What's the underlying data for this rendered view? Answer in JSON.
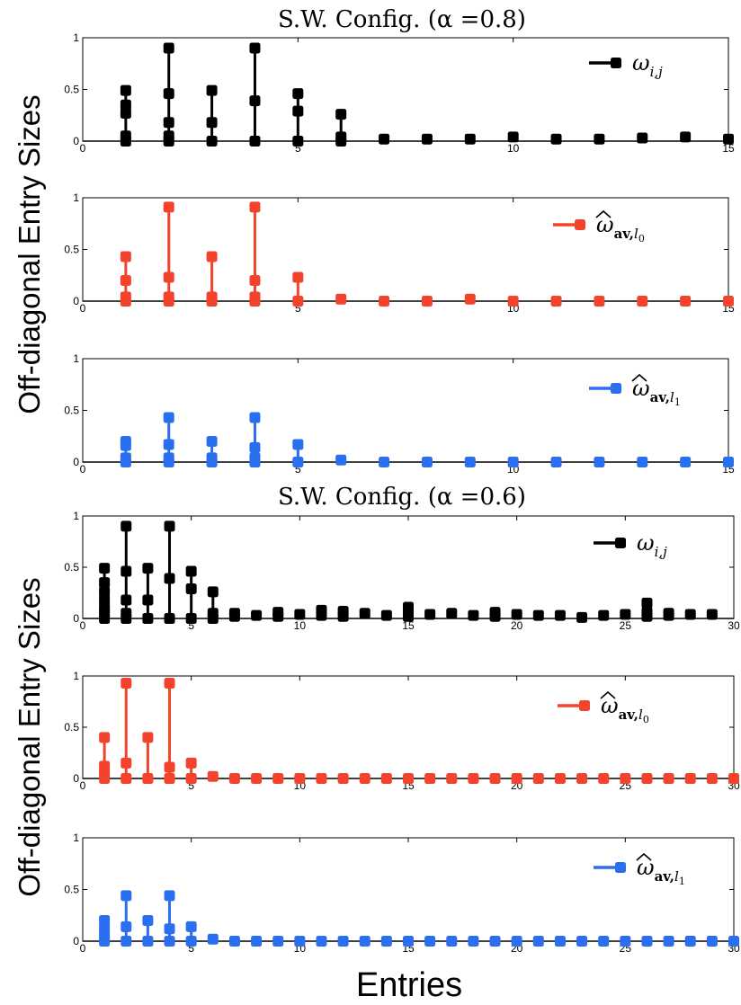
{
  "colors": {
    "black": "#000000",
    "red": "#f4432c",
    "blue": "#2a6ff0"
  },
  "figure": {
    "ylabel": "Off-diagonal Entry Sizes",
    "xlabel": "Entries"
  },
  "chart_data": [
    {
      "type": "stem",
      "title": "S.W. Config. (α =0.8)",
      "xlim": [
        0,
        15
      ],
      "ylim": [
        0,
        1
      ],
      "xticks": [
        "0",
        "5",
        "10",
        "15"
      ],
      "yticks": [
        "0",
        "0.5",
        "1"
      ],
      "panels": [
        {
          "legend": "ω_{i,j}",
          "color": "#000000",
          "stems": [
            {
              "x": 1,
              "values": [
                0.0,
                0.05,
                0.27,
                0.35,
                0.49
              ]
            },
            {
              "x": 2,
              "values": [
                0.0,
                0.05,
                0.18,
                0.46,
                0.9
              ]
            },
            {
              "x": 3,
              "values": [
                0.0,
                0.18,
                0.49
              ]
            },
            {
              "x": 4,
              "values": [
                0.0,
                0.39,
                0.9
              ]
            },
            {
              "x": 5,
              "values": [
                0.0,
                0.29,
                0.46
              ]
            },
            {
              "x": 6,
              "values": [
                0.0,
                0.04,
                0.26
              ]
            },
            {
              "x": 7,
              "values": [
                0.02
              ]
            },
            {
              "x": 8,
              "values": [
                0.02
              ]
            },
            {
              "x": 9,
              "values": [
                0.02
              ]
            },
            {
              "x": 10,
              "values": [
                0.04
              ]
            },
            {
              "x": 11,
              "values": [
                0.02
              ]
            },
            {
              "x": 12,
              "values": [
                0.02
              ]
            },
            {
              "x": 13,
              "values": [
                0.03
              ]
            },
            {
              "x": 14,
              "values": [
                0.04
              ]
            },
            {
              "x": 15,
              "values": [
                0.02
              ]
            }
          ]
        },
        {
          "legend": "ω̂_{av,l0}",
          "color": "#f4432c",
          "stems": [
            {
              "x": 1,
              "values": [
                0.0,
                0.04,
                0.2,
                0.43
              ]
            },
            {
              "x": 2,
              "values": [
                0.0,
                0.04,
                0.23,
                0.91
              ]
            },
            {
              "x": 3,
              "values": [
                0.0,
                0.04,
                0.43
              ]
            },
            {
              "x": 4,
              "values": [
                0.0,
                0.04,
                0.2,
                0.91
              ]
            },
            {
              "x": 5,
              "values": [
                0.0,
                0.23
              ]
            },
            {
              "x": 6,
              "values": [
                0.02
              ]
            },
            {
              "x": 7,
              "values": [
                0.0
              ]
            },
            {
              "x": 8,
              "values": [
                0.0
              ]
            },
            {
              "x": 9,
              "values": [
                0.02
              ]
            },
            {
              "x": 10,
              "values": [
                0.0
              ]
            },
            {
              "x": 11,
              "values": [
                0.0
              ]
            },
            {
              "x": 12,
              "values": [
                0.0
              ]
            },
            {
              "x": 13,
              "values": [
                0.0
              ]
            },
            {
              "x": 14,
              "values": [
                0.0
              ]
            },
            {
              "x": 15,
              "values": [
                0.0
              ]
            }
          ]
        },
        {
          "legend": "ω̂_{av,l1}",
          "color": "#2a6ff0",
          "stems": [
            {
              "x": 1,
              "values": [
                0.0,
                0.04,
                0.16,
                0.2
              ]
            },
            {
              "x": 2,
              "values": [
                0.0,
                0.04,
                0.17,
                0.43
              ]
            },
            {
              "x": 3,
              "values": [
                0.0,
                0.04,
                0.2
              ]
            },
            {
              "x": 4,
              "values": [
                0.0,
                0.04,
                0.14,
                0.43
              ]
            },
            {
              "x": 5,
              "values": [
                0.0,
                0.17
              ]
            },
            {
              "x": 6,
              "values": [
                0.02
              ]
            },
            {
              "x": 7,
              "values": [
                0.0
              ]
            },
            {
              "x": 8,
              "values": [
                0.0
              ]
            },
            {
              "x": 9,
              "values": [
                0.0
              ]
            },
            {
              "x": 10,
              "values": [
                0.0
              ]
            },
            {
              "x": 11,
              "values": [
                0.0
              ]
            },
            {
              "x": 12,
              "values": [
                0.0
              ]
            },
            {
              "x": 13,
              "values": [
                0.0
              ]
            },
            {
              "x": 14,
              "values": [
                0.0
              ]
            },
            {
              "x": 15,
              "values": [
                0.0
              ]
            }
          ]
        }
      ]
    },
    {
      "type": "stem",
      "title": "S.W. Config. (α =0.6)",
      "xlim": [
        0,
        30
      ],
      "ylim": [
        0,
        1
      ],
      "xticks": [
        "0",
        "5",
        "10",
        "15",
        "20",
        "25",
        "30"
      ],
      "yticks": [
        "0",
        "0.5",
        "1"
      ],
      "panels": [
        {
          "legend": "ω_{i,j}",
          "color": "#000000",
          "stems": [
            {
              "x": 1,
              "values": [
                0.0,
                0.05,
                0.1,
                0.18,
                0.26,
                0.35,
                0.49
              ]
            },
            {
              "x": 2,
              "values": [
                0.0,
                0.05,
                0.18,
                0.46,
                0.9
              ]
            },
            {
              "x": 3,
              "values": [
                0.0,
                0.18,
                0.49
              ]
            },
            {
              "x": 4,
              "values": [
                0.0,
                0.39,
                0.9
              ]
            },
            {
              "x": 5,
              "values": [
                0.0,
                0.29,
                0.46
              ]
            },
            {
              "x": 6,
              "values": [
                0.0,
                0.05,
                0.26
              ]
            },
            {
              "x": 7,
              "values": [
                0.02,
                0.05
              ]
            },
            {
              "x": 8,
              "values": [
                0.03
              ]
            },
            {
              "x": 9,
              "values": [
                0.02,
                0.06
              ]
            },
            {
              "x": 10,
              "values": [
                0.04
              ]
            },
            {
              "x": 11,
              "values": [
                0.03,
                0.08
              ]
            },
            {
              "x": 12,
              "values": [
                0.02,
                0.07
              ]
            },
            {
              "x": 13,
              "values": [
                0.05
              ]
            },
            {
              "x": 14,
              "values": [
                0.03
              ]
            },
            {
              "x": 15,
              "values": [
                0.02,
                0.06,
                0.11
              ]
            },
            {
              "x": 16,
              "values": [
                0.04
              ]
            },
            {
              "x": 17,
              "values": [
                0.05
              ]
            },
            {
              "x": 18,
              "values": [
                0.03
              ]
            },
            {
              "x": 19,
              "values": [
                0.02,
                0.06
              ]
            },
            {
              "x": 20,
              "values": [
                0.04
              ]
            },
            {
              "x": 21,
              "values": [
                0.03
              ]
            },
            {
              "x": 22,
              "values": [
                0.03
              ]
            },
            {
              "x": 23,
              "values": [
                0.01
              ]
            },
            {
              "x": 24,
              "values": [
                0.03
              ]
            },
            {
              "x": 25,
              "values": [
                0.04
              ]
            },
            {
              "x": 26,
              "values": [
                0.02,
                0.06,
                0.15
              ]
            },
            {
              "x": 27,
              "values": [
                0.03,
                0.05
              ]
            },
            {
              "x": 28,
              "values": [
                0.04
              ]
            },
            {
              "x": 29,
              "values": [
                0.04
              ]
            }
          ]
        },
        {
          "legend": "ω̂_{av,l0}",
          "color": "#f4432c",
          "stems": [
            {
              "x": 1,
              "values": [
                0.0,
                0.05,
                0.12,
                0.4
              ]
            },
            {
              "x": 2,
              "values": [
                0.0,
                0.15,
                0.93
              ]
            },
            {
              "x": 3,
              "values": [
                0.0,
                0.4
              ]
            },
            {
              "x": 4,
              "values": [
                0.0,
                0.11,
                0.93
              ]
            },
            {
              "x": 5,
              "values": [
                0.0,
                0.15
              ]
            },
            {
              "x": 6,
              "values": [
                0.02
              ]
            },
            {
              "x": 7,
              "values": [
                0.0
              ]
            },
            {
              "x": 8,
              "values": [
                0.0
              ]
            },
            {
              "x": 9,
              "values": [
                0.0
              ]
            },
            {
              "x": 10,
              "values": [
                0.0
              ]
            },
            {
              "x": 11,
              "values": [
                0.0
              ]
            },
            {
              "x": 12,
              "values": [
                0.0
              ]
            },
            {
              "x": 13,
              "values": [
                0.0
              ]
            },
            {
              "x": 14,
              "values": [
                0.0
              ]
            },
            {
              "x": 15,
              "values": [
                0.0
              ]
            },
            {
              "x": 16,
              "values": [
                0.0
              ]
            },
            {
              "x": 17,
              "values": [
                0.0
              ]
            },
            {
              "x": 18,
              "values": [
                0.0
              ]
            },
            {
              "x": 19,
              "values": [
                0.0
              ]
            },
            {
              "x": 20,
              "values": [
                0.0
              ]
            },
            {
              "x": 21,
              "values": [
                0.0
              ]
            },
            {
              "x": 22,
              "values": [
                0.0
              ]
            },
            {
              "x": 23,
              "values": [
                0.0
              ]
            },
            {
              "x": 24,
              "values": [
                0.0
              ]
            },
            {
              "x": 25,
              "values": [
                0.0
              ]
            },
            {
              "x": 26,
              "values": [
                0.0
              ]
            },
            {
              "x": 27,
              "values": [
                0.0
              ]
            },
            {
              "x": 28,
              "values": [
                0.0
              ]
            },
            {
              "x": 29,
              "values": [
                0.0
              ]
            },
            {
              "x": 30,
              "values": [
                0.0
              ]
            }
          ]
        },
        {
          "legend": "ω̂_{av,l1}",
          "color": "#2a6ff0",
          "stems": [
            {
              "x": 1,
              "values": [
                0.0,
                0.05,
                0.12,
                0.2
              ]
            },
            {
              "x": 2,
              "values": [
                0.0,
                0.14,
                0.44
              ]
            },
            {
              "x": 3,
              "values": [
                0.0,
                0.2
              ]
            },
            {
              "x": 4,
              "values": [
                0.0,
                0.12,
                0.44
              ]
            },
            {
              "x": 5,
              "values": [
                0.0,
                0.14
              ]
            },
            {
              "x": 6,
              "values": [
                0.02
              ]
            },
            {
              "x": 7,
              "values": [
                0.0
              ]
            },
            {
              "x": 8,
              "values": [
                0.0
              ]
            },
            {
              "x": 9,
              "values": [
                0.0
              ]
            },
            {
              "x": 10,
              "values": [
                0.0
              ]
            },
            {
              "x": 11,
              "values": [
                0.0
              ]
            },
            {
              "x": 12,
              "values": [
                0.0
              ]
            },
            {
              "x": 13,
              "values": [
                0.0
              ]
            },
            {
              "x": 14,
              "values": [
                0.0
              ]
            },
            {
              "x": 15,
              "values": [
                0.0
              ]
            },
            {
              "x": 16,
              "values": [
                0.0
              ]
            },
            {
              "x": 17,
              "values": [
                0.0
              ]
            },
            {
              "x": 18,
              "values": [
                0.0
              ]
            },
            {
              "x": 19,
              "values": [
                0.0
              ]
            },
            {
              "x": 20,
              "values": [
                0.0
              ]
            },
            {
              "x": 21,
              "values": [
                0.0
              ]
            },
            {
              "x": 22,
              "values": [
                0.0
              ]
            },
            {
              "x": 23,
              "values": [
                0.0
              ]
            },
            {
              "x": 24,
              "values": [
                0.0
              ]
            },
            {
              "x": 25,
              "values": [
                0.0
              ]
            },
            {
              "x": 26,
              "values": [
                0.0
              ]
            },
            {
              "x": 27,
              "values": [
                0.0
              ]
            },
            {
              "x": 28,
              "values": [
                0.0
              ]
            },
            {
              "x": 29,
              "values": [
                0.0
              ]
            },
            {
              "x": 30,
              "values": [
                0.0
              ]
            }
          ]
        }
      ]
    }
  ]
}
